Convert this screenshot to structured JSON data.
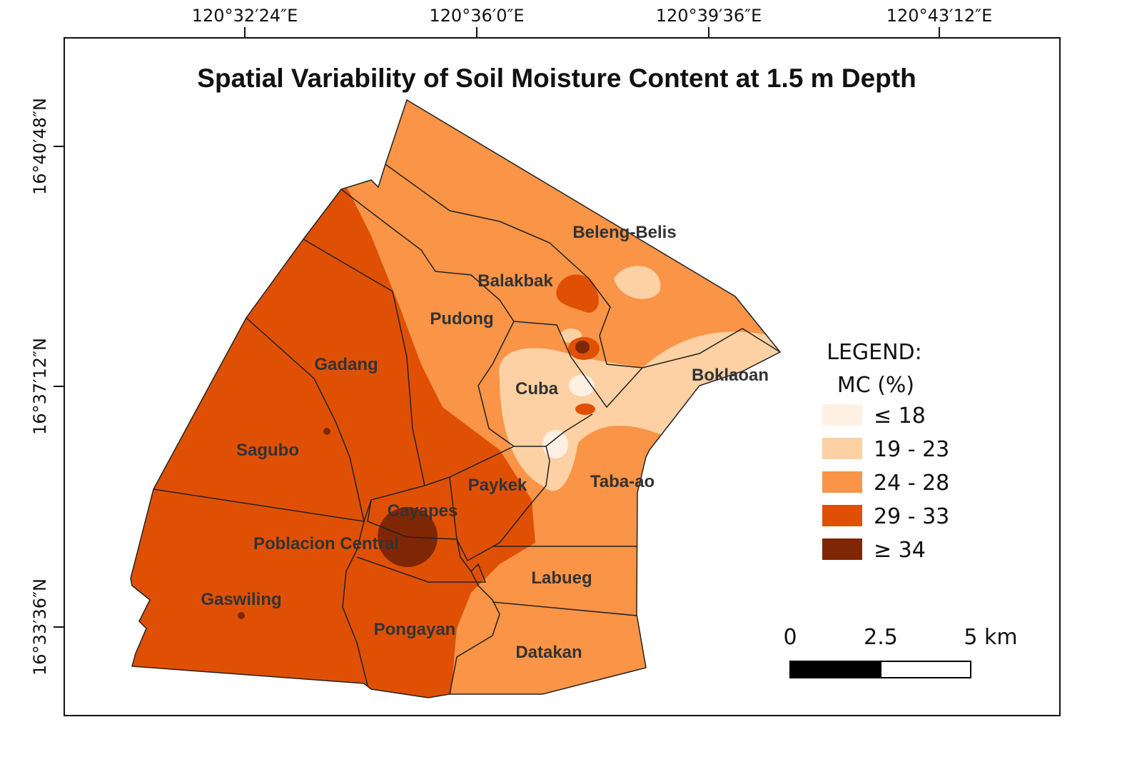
{
  "title": "Spatial Variability of Soil Moisture Content at 1.5 m Depth",
  "longitude_labels": [
    "120°32′24″E",
    "120°36′0″E",
    "120°39′36″E",
    "120°43′12″E"
  ],
  "latitude_labels": [
    "16°40′48″N",
    "16°37′12″N",
    "16°33′36″N"
  ],
  "barangays": [
    "Beleng-Belis",
    "Balakbak",
    "Pudong",
    "Gadang",
    "Cuba",
    "Boklaoan",
    "Sagubo",
    "Paykek",
    "Taba-ao",
    "Cayapes",
    "Poblacion Central",
    "Labueg",
    "Gaswiling",
    "Pongayan",
    "Datakan"
  ],
  "legend": {
    "title": "LEGEND:",
    "subtitle": "MC (%)",
    "classes": [
      {
        "label": "≤ 18",
        "color": "#fef1e3"
      },
      {
        "label": "19 - 23",
        "color": "#fdd1a3"
      },
      {
        "label": "24 - 28",
        "color": "#fa9446"
      },
      {
        "label": "29 - 33",
        "color": "#df5005"
      },
      {
        "label": "≥ 34",
        "color": "#7f2704"
      }
    ]
  },
  "scale_bar": {
    "labels": [
      "0",
      "2.5",
      "5 km"
    ]
  }
}
